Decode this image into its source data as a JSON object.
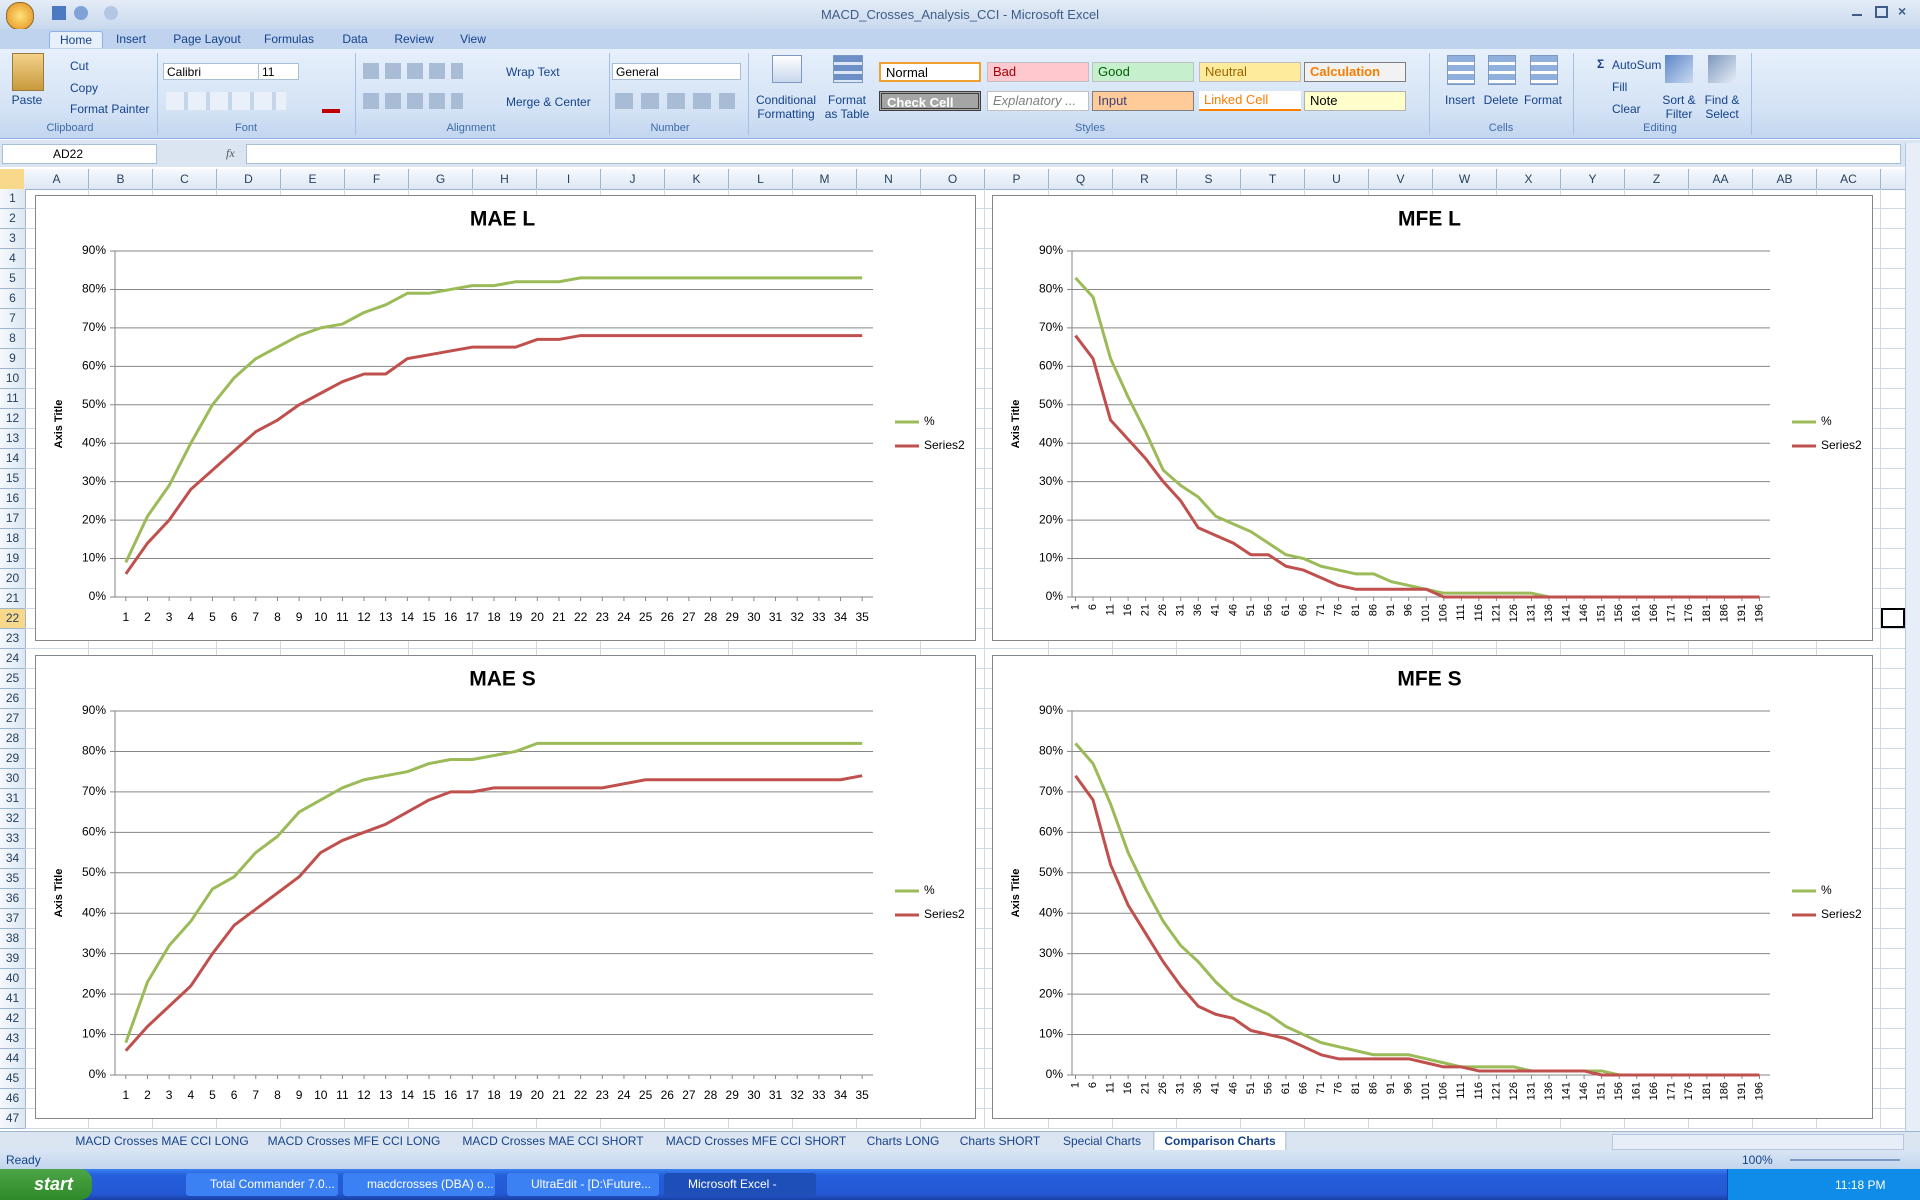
{
  "window": {
    "title": "MACD_Crosses_Analysis_CCI - Microsoft Excel"
  },
  "ribbon": {
    "tabs": [
      "Home",
      "Insert",
      "Page Layout",
      "Formulas",
      "Data",
      "Review",
      "View"
    ],
    "clipboard": {
      "label": "Clipboard",
      "paste": "Paste",
      "cut": "Cut",
      "copy": "Copy",
      "painter": "Format Painter"
    },
    "font": {
      "label": "Font",
      "name": "Calibri",
      "size": "11"
    },
    "alignment": {
      "label": "Alignment",
      "wrap": "Wrap Text",
      "merge": "Merge & Center"
    },
    "number": {
      "label": "Number",
      "format": "General"
    },
    "styles": {
      "label": "Styles",
      "conditional": [
        "Conditional",
        "Formatting"
      ],
      "table": [
        "Format",
        "as Table"
      ],
      "cells": [
        "Normal",
        "Bad",
        "Good",
        "Neutral",
        "Calculation",
        "Check Cell",
        "Explanatory ...",
        "Input",
        "Linked Cell",
        "Note"
      ]
    },
    "cells": {
      "label": "Cells",
      "insert": "Insert",
      "delete": "Delete",
      "format": "Format"
    },
    "editing": {
      "label": "Editing",
      "autosum": "AutoSum",
      "fill": "Fill",
      "clear": "Clear",
      "sort": [
        "Sort &",
        "Filter"
      ],
      "find": [
        "Find &",
        "Select"
      ]
    }
  },
  "formula_bar": {
    "name_box": "AD22",
    "fx": "fx"
  },
  "sheet": {
    "columns": [
      "A",
      "B",
      "C",
      "D",
      "E",
      "F",
      "G",
      "H",
      "I",
      "J",
      "K",
      "L",
      "M",
      "N",
      "O",
      "P",
      "Q",
      "R",
      "S",
      "T",
      "U",
      "V",
      "W",
      "X",
      "Y",
      "Z",
      "AA",
      "AB",
      "AC"
    ],
    "rows": [
      1,
      2,
      3,
      4,
      5,
      6,
      7,
      8,
      9,
      10,
      11,
      12,
      13,
      14,
      15,
      16,
      17,
      18,
      19,
      20,
      21,
      22,
      23,
      24,
      25,
      26,
      27,
      28,
      29,
      30,
      31,
      32,
      33,
      34,
      35,
      36,
      37,
      38,
      39,
      40,
      41,
      42,
      43,
      44,
      45,
      46,
      47
    ]
  },
  "sheet_tabs": {
    "tabs": [
      "MACD Crosses MAE CCI LONG",
      "MACD Crosses MFE CCI LONG",
      "MACD Crosses MAE CCI SHORT",
      "MACD Crosses MFE CCI SHORT",
      "Charts LONG",
      "Charts SHORT",
      "Special Charts",
      "Comparison Charts"
    ],
    "active": 7
  },
  "status": {
    "mode": "Ready",
    "zoom": "100%"
  },
  "taskbar": {
    "start": "start",
    "items": [
      "Total Commander 7.0...",
      "macdcrosses (DBA) o...",
      "UltraEdit - [D:\\Future...",
      "Microsoft Excel - MAC..."
    ],
    "clock": "11:18 PM"
  },
  "chart_data": [
    {
      "type": "line",
      "title": "MAE L",
      "y_axis_title": "Axis Title",
      "legend": "right",
      "x": [
        1,
        2,
        3,
        4,
        5,
        6,
        7,
        8,
        9,
        10,
        11,
        12,
        13,
        14,
        15,
        16,
        17,
        18,
        19,
        20,
        21,
        22,
        23,
        24,
        25,
        26,
        27,
        28,
        29,
        30,
        31,
        32,
        33,
        34,
        35
      ],
      "xlim": [
        0.5,
        35.5
      ],
      "xticks": [
        1,
        2,
        3,
        4,
        5,
        6,
        7,
        8,
        9,
        10,
        11,
        12,
        13,
        14,
        15,
        16,
        17,
        18,
        19,
        20,
        21,
        22,
        23,
        24,
        25,
        26,
        27,
        28,
        29,
        30,
        31,
        32,
        33,
        34,
        35
      ],
      "ylim": [
        0,
        90
      ],
      "yticks": [
        {
          "value": 0,
          "label": "0%"
        },
        {
          "value": 10,
          "label": "10%"
        },
        {
          "value": 20,
          "label": "20%"
        },
        {
          "value": 30,
          "label": "30%"
        },
        {
          "value": 40,
          "label": "40%"
        },
        {
          "value": 50,
          "label": "50%"
        },
        {
          "value": 60,
          "label": "60%"
        },
        {
          "value": 70,
          "label": "70%"
        },
        {
          "value": 80,
          "label": "80%"
        },
        {
          "value": 90,
          "label": "90%"
        }
      ],
      "grid": true,
      "series": [
        {
          "name": "%",
          "color": "#9bbb59",
          "values": [
            9,
            21,
            29,
            40,
            50,
            57,
            62,
            65,
            68,
            70,
            71,
            74,
            76,
            79,
            79,
            80,
            81,
            81,
            82,
            82,
            82,
            83,
            83,
            83,
            83,
            83,
            83,
            83,
            83,
            83,
            83,
            83,
            83,
            83,
            83
          ]
        },
        {
          "name": "Series2",
          "color": "#c0504d",
          "values": [
            6,
            14,
            20,
            28,
            33,
            38,
            43,
            46,
            50,
            53,
            56,
            58,
            58,
            62,
            63,
            64,
            65,
            65,
            65,
            67,
            67,
            68,
            68,
            68,
            68,
            68,
            68,
            68,
            68,
            68,
            68,
            68,
            68,
            68,
            68
          ]
        }
      ]
    },
    {
      "type": "line",
      "title": "MFE L",
      "y_axis_title": "Axis Title",
      "legend": "right",
      "xtick_rotation": -90,
      "x": [
        1,
        6,
        11,
        16,
        21,
        26,
        31,
        36,
        41,
        46,
        51,
        56,
        61,
        66,
        71,
        76,
        81,
        86,
        91,
        96,
        101,
        106,
        111,
        116,
        121,
        126,
        131,
        136,
        141,
        146,
        151,
        156,
        161,
        166,
        171,
        176,
        181,
        186,
        191,
        196
      ],
      "xlim": [
        0,
        199
      ],
      "xticks": [
        1,
        6,
        11,
        16,
        21,
        26,
        31,
        36,
        41,
        46,
        51,
        56,
        61,
        66,
        71,
        76,
        81,
        86,
        91,
        96,
        101,
        106,
        111,
        116,
        121,
        126,
        131,
        136,
        141,
        146,
        151,
        156,
        161,
        166,
        171,
        176,
        181,
        186,
        191,
        196
      ],
      "ylim": [
        0,
        90
      ],
      "yticks": [
        {
          "value": 0,
          "label": "0%"
        },
        {
          "value": 10,
          "label": "10%"
        },
        {
          "value": 20,
          "label": "20%"
        },
        {
          "value": 30,
          "label": "30%"
        },
        {
          "value": 40,
          "label": "40%"
        },
        {
          "value": 50,
          "label": "50%"
        },
        {
          "value": 60,
          "label": "60%"
        },
        {
          "value": 70,
          "label": "70%"
        },
        {
          "value": 80,
          "label": "80%"
        },
        {
          "value": 90,
          "label": "90%"
        }
      ],
      "grid": true,
      "series": [
        {
          "name": "%",
          "color": "#9bbb59",
          "values": [
            83,
            78,
            62,
            52,
            43,
            33,
            29,
            26,
            21,
            19,
            17,
            14,
            11,
            10,
            8,
            7,
            6,
            6,
            4,
            3,
            2,
            1,
            1,
            1,
            1,
            1,
            1,
            0,
            0,
            0,
            0,
            0,
            0,
            0,
            0,
            0,
            0,
            0,
            0,
            0
          ]
        },
        {
          "name": "Series2",
          "color": "#c0504d",
          "values": [
            68,
            62,
            46,
            41,
            36,
            30,
            25,
            18,
            16,
            14,
            11,
            11,
            8,
            7,
            5,
            3,
            2,
            2,
            2,
            2,
            2,
            0,
            0,
            0,
            0,
            0,
            0,
            0,
            0,
            0,
            0,
            0,
            0,
            0,
            0,
            0,
            0,
            0,
            0,
            0
          ]
        }
      ]
    },
    {
      "type": "line",
      "title": "MAE S",
      "y_axis_title": "Axis Title",
      "legend": "right",
      "x": [
        1,
        2,
        3,
        4,
        5,
        6,
        7,
        8,
        9,
        10,
        11,
        12,
        13,
        14,
        15,
        16,
        17,
        18,
        19,
        20,
        21,
        22,
        23,
        24,
        25,
        26,
        27,
        28,
        29,
        30,
        31,
        32,
        33,
        34,
        35
      ],
      "xlim": [
        0.5,
        35.5
      ],
      "xticks": [
        1,
        2,
        3,
        4,
        5,
        6,
        7,
        8,
        9,
        10,
        11,
        12,
        13,
        14,
        15,
        16,
        17,
        18,
        19,
        20,
        21,
        22,
        23,
        24,
        25,
        26,
        27,
        28,
        29,
        30,
        31,
        32,
        33,
        34,
        35
      ],
      "ylim": [
        0,
        90
      ],
      "yticks": [
        {
          "value": 0,
          "label": "0%"
        },
        {
          "value": 10,
          "label": "10%"
        },
        {
          "value": 20,
          "label": "20%"
        },
        {
          "value": 30,
          "label": "30%"
        },
        {
          "value": 40,
          "label": "40%"
        },
        {
          "value": 50,
          "label": "50%"
        },
        {
          "value": 60,
          "label": "60%"
        },
        {
          "value": 70,
          "label": "70%"
        },
        {
          "value": 80,
          "label": "80%"
        },
        {
          "value": 90,
          "label": "90%"
        }
      ],
      "grid": true,
      "series": [
        {
          "name": "%",
          "color": "#9bbb59",
          "values": [
            8,
            23,
            32,
            38,
            46,
            49,
            55,
            59,
            65,
            68,
            71,
            73,
            74,
            75,
            77,
            78,
            78,
            79,
            80,
            82,
            82,
            82,
            82,
            82,
            82,
            82,
            82,
            82,
            82,
            82,
            82,
            82,
            82,
            82,
            82
          ]
        },
        {
          "name": "Series2",
          "color": "#c0504d",
          "values": [
            6,
            12,
            17,
            22,
            30,
            37,
            41,
            45,
            49,
            55,
            58,
            60,
            62,
            65,
            68,
            70,
            70,
            71,
            71,
            71,
            71,
            71,
            71,
            72,
            73,
            73,
            73,
            73,
            73,
            73,
            73,
            73,
            73,
            73,
            74
          ]
        }
      ]
    },
    {
      "type": "line",
      "title": "MFE S",
      "y_axis_title": "Axis Title",
      "legend": "right",
      "xtick_rotation": -90,
      "x": [
        1,
        6,
        11,
        16,
        21,
        26,
        31,
        36,
        41,
        46,
        51,
        56,
        61,
        66,
        71,
        76,
        81,
        86,
        91,
        96,
        101,
        106,
        111,
        116,
        121,
        126,
        131,
        136,
        141,
        146,
        151,
        156,
        161,
        166,
        171,
        176,
        181,
        186,
        191,
        196
      ],
      "xlim": [
        0,
        199
      ],
      "xticks": [
        1,
        6,
        11,
        16,
        21,
        26,
        31,
        36,
        41,
        46,
        51,
        56,
        61,
        66,
        71,
        76,
        81,
        86,
        91,
        96,
        101,
        106,
        111,
        116,
        121,
        126,
        131,
        136,
        141,
        146,
        151,
        156,
        161,
        166,
        171,
        176,
        181,
        186,
        191,
        196
      ],
      "ylim": [
        0,
        90
      ],
      "yticks": [
        {
          "value": 0,
          "label": "0%"
        },
        {
          "value": 10,
          "label": "10%"
        },
        {
          "value": 20,
          "label": "20%"
        },
        {
          "value": 30,
          "label": "30%"
        },
        {
          "value": 40,
          "label": "40%"
        },
        {
          "value": 50,
          "label": "50%"
        },
        {
          "value": 60,
          "label": "60%"
        },
        {
          "value": 70,
          "label": "70%"
        },
        {
          "value": 80,
          "label": "80%"
        },
        {
          "value": 90,
          "label": "90%"
        }
      ],
      "grid": true,
      "series": [
        {
          "name": "%",
          "color": "#9bbb59",
          "values": [
            82,
            77,
            67,
            55,
            46,
            38,
            32,
            28,
            23,
            19,
            17,
            15,
            12,
            10,
            8,
            7,
            6,
            5,
            5,
            5,
            4,
            3,
            2,
            2,
            2,
            2,
            1,
            1,
            1,
            1,
            1,
            0,
            0,
            0,
            0,
            0,
            0,
            0,
            0,
            0
          ]
        },
        {
          "name": "Series2",
          "color": "#c0504d",
          "values": [
            74,
            68,
            52,
            42,
            35,
            28,
            22,
            17,
            15,
            14,
            11,
            10,
            9,
            7,
            5,
            4,
            4,
            4,
            4,
            4,
            3,
            2,
            2,
            1,
            1,
            1,
            1,
            1,
            1,
            1,
            0,
            0,
            0,
            0,
            0,
            0,
            0,
            0,
            0,
            0
          ]
        }
      ]
    }
  ]
}
